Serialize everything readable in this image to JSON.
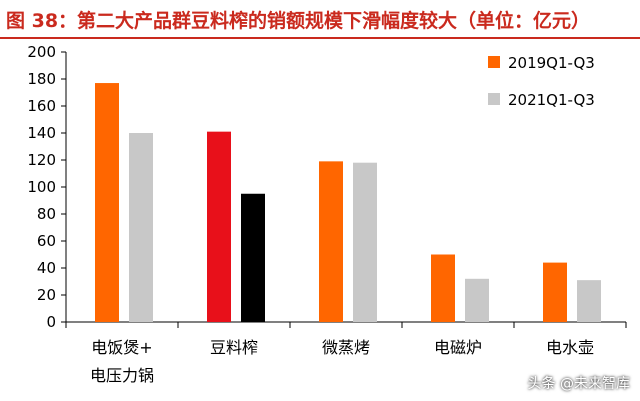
{
  "header": {
    "title": "图 38：第二大产品群豆料榨的销额规模下滑幅度较大（单位：亿元）"
  },
  "watermark": "头条 @未来智库",
  "colors": {
    "series_2019": "#ff6600",
    "series_2021": "#c8c8c8",
    "highlight_2019": "#e8101a",
    "highlight_2021": "#000000",
    "title": "#ca2a1e"
  },
  "chart_data": {
    "type": "bar",
    "title": "",
    "xlabel": "",
    "ylabel": "",
    "categories": [
      [
        "电饭煲+",
        "电压力锅"
      ],
      [
        "豆料榨"
      ],
      [
        "微蒸烤"
      ],
      [
        "电磁炉"
      ],
      [
        "电水壶"
      ]
    ],
    "series": [
      {
        "name": "2019Q1-Q3",
        "values": [
          177,
          141,
          119,
          50,
          44
        ]
      },
      {
        "name": "2021Q1-Q3",
        "values": [
          140,
          95,
          118,
          32,
          31
        ]
      }
    ],
    "highlighted_category_index": 1,
    "ylim": [
      0,
      200
    ],
    "yticks": [
      0,
      20,
      40,
      60,
      80,
      100,
      120,
      140,
      160,
      180,
      200
    ],
    "grid": false,
    "legend_position": "top-right"
  }
}
